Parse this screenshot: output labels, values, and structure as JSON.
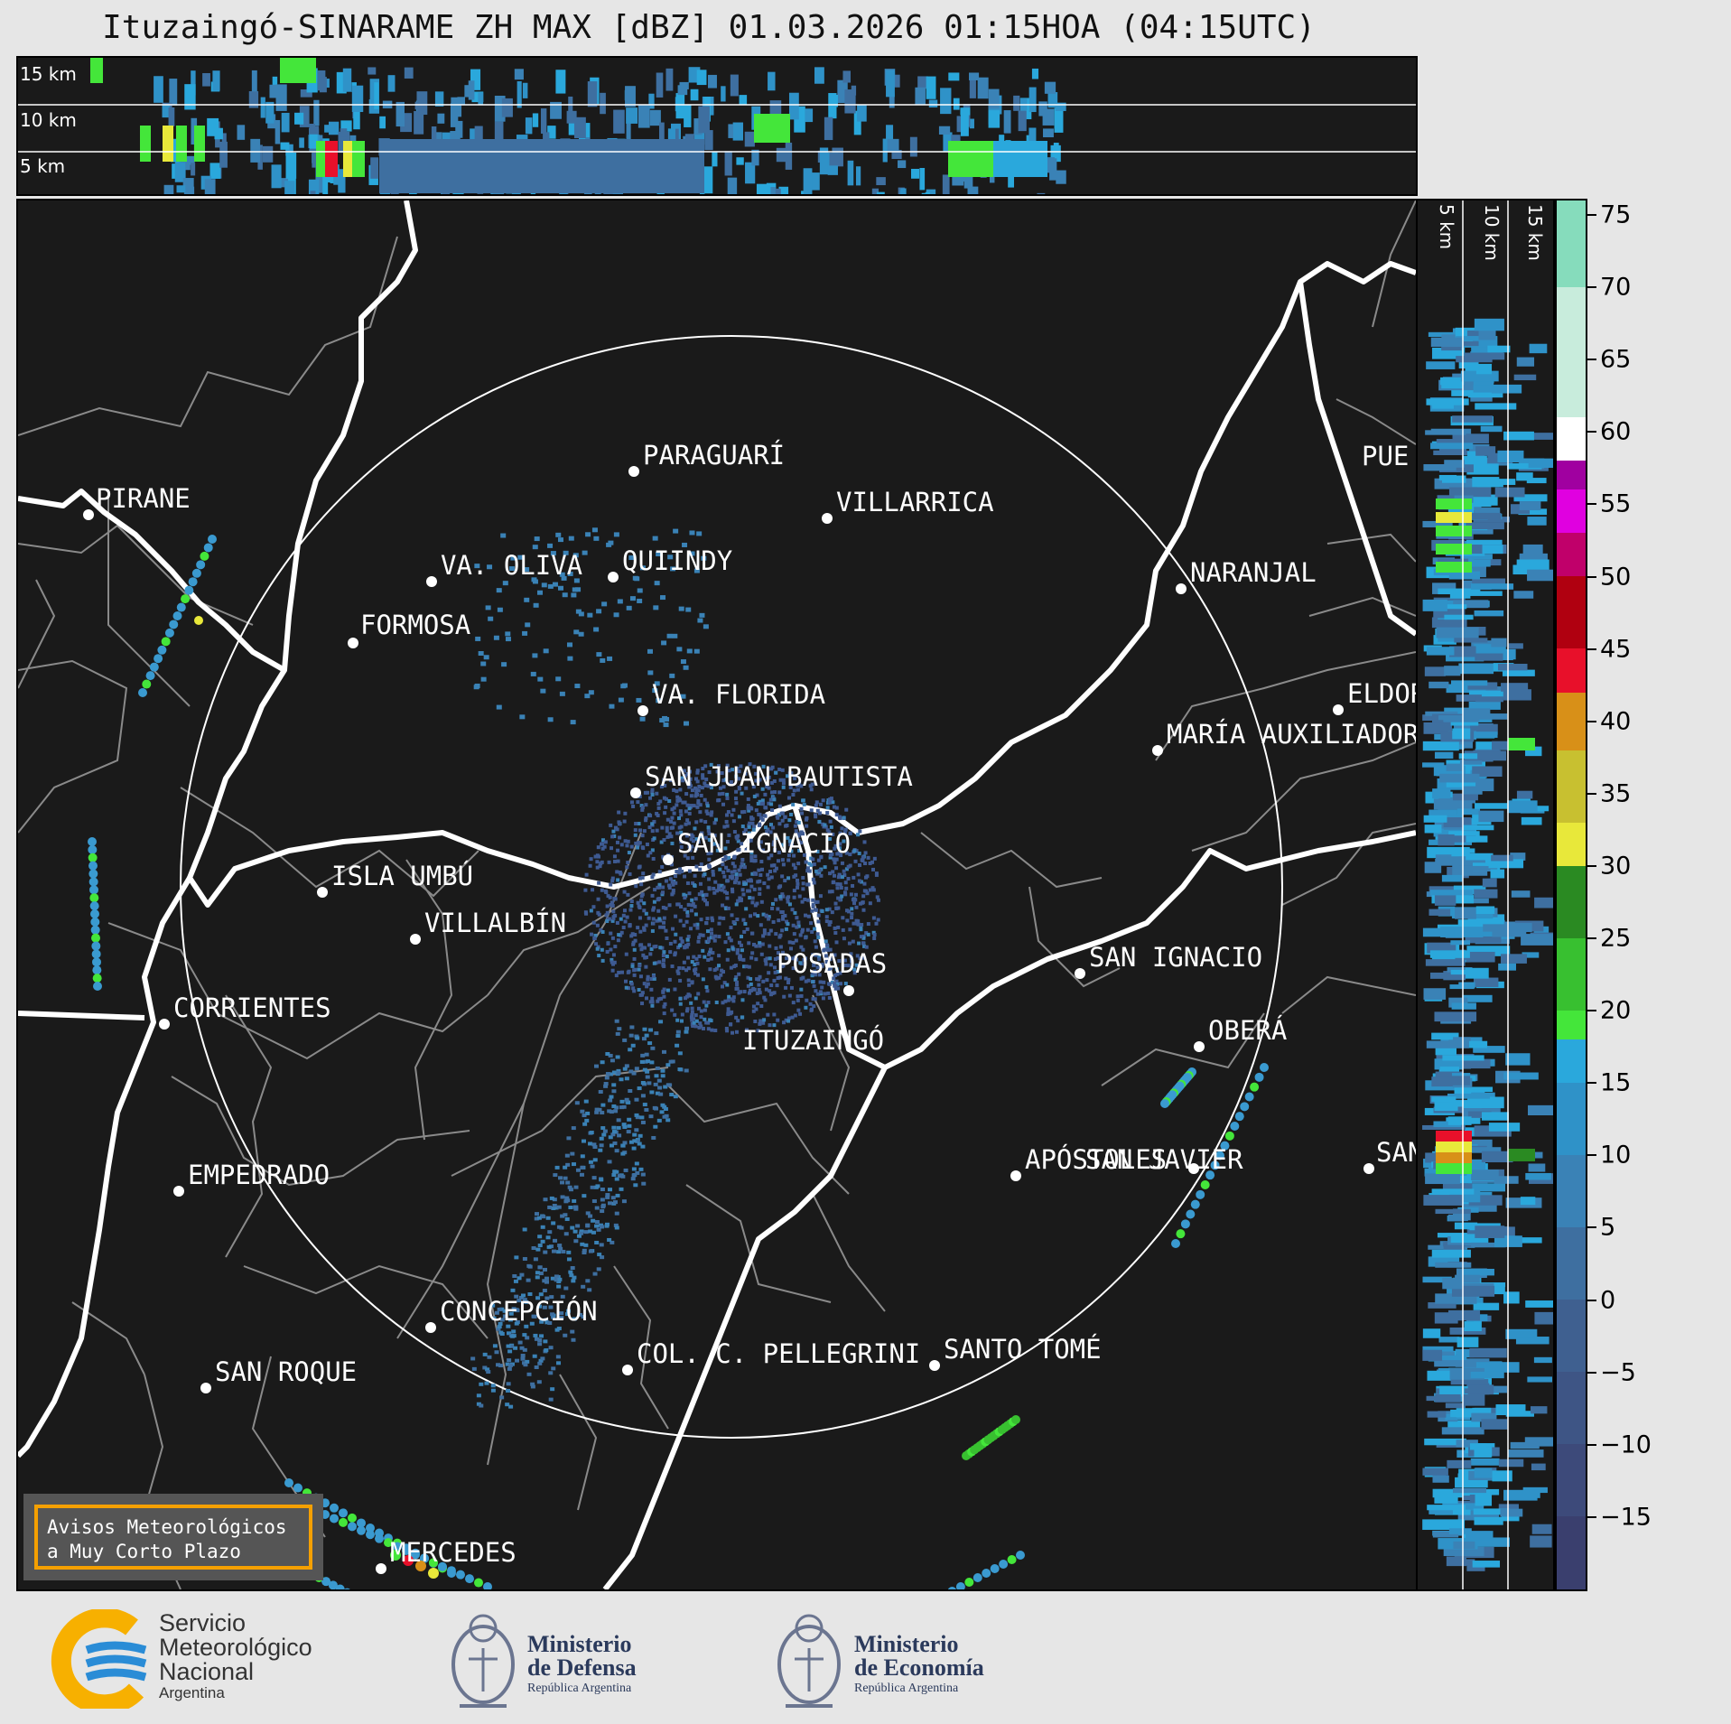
{
  "title": "Ituzaingó-SINARAME ZH MAX [dBZ] 01.03.2026 01:15HOA (04:15UTC)",
  "top_panel": {
    "height_labels": [
      "15 km",
      "10 km",
      "5 km"
    ]
  },
  "right_panel": {
    "height_labels": [
      "5 km",
      "10 km",
      "15 km"
    ]
  },
  "colorbar": {
    "ticks": [
      "75",
      "70",
      "65",
      "60",
      "55",
      "50",
      "45",
      "40",
      "35",
      "30",
      "25",
      "20",
      "15",
      "10",
      "5",
      "0",
      "−5",
      "−10",
      "−15"
    ],
    "range": [
      -20,
      76
    ]
  },
  "cities": [
    {
      "name": "PIRANE"
    },
    {
      "name": "PARAGUARÍ"
    },
    {
      "name": "VILLARRICA"
    },
    {
      "name": "QUIINDY"
    },
    {
      "name": "VA. OLIVA"
    },
    {
      "name": "NARANJAL"
    },
    {
      "name": "FORMOSA"
    },
    {
      "name": "VA. FLORIDA"
    },
    {
      "name": "ELDOR"
    },
    {
      "name": "MARÍA AUXILIADOR"
    },
    {
      "name": "SAN JUAN BAUTISTA"
    },
    {
      "name": "SAN IGNACIO"
    },
    {
      "name": "ISLA UMBÚ"
    },
    {
      "name": "VILLALBÍN"
    },
    {
      "name": "SAN IGNACIO"
    },
    {
      "name": "POSADAS"
    },
    {
      "name": "CORRIENTES"
    },
    {
      "name": "OBERÁ"
    },
    {
      "name": "ITUZAINGÓ"
    },
    {
      "name": "EMPEDRADO"
    },
    {
      "name": "APÓSTOLES"
    },
    {
      "name": "SAN JAVIER"
    },
    {
      "name": "SAN"
    },
    {
      "name": "CONCEPCIÓN"
    },
    {
      "name": "COL. C. PELLEGRINI"
    },
    {
      "name": "SANTO TOMÉ"
    },
    {
      "name": "SAN ROQUE"
    },
    {
      "name": "MERCEDES"
    },
    {
      "name": "PUE"
    }
  ],
  "warning": {
    "line1": "Avisos Meteorológicos",
    "line2": "a Muy Corto Plazo"
  },
  "logos": {
    "smn": {
      "line1": "Servicio",
      "line2": "Meteorológico",
      "line3": "Nacional",
      "line4": "Argentina"
    },
    "defensa": {
      "line1": "Ministerio",
      "line2": "de Defensa",
      "line3": "República Argentina"
    },
    "economia": {
      "line1": "Ministerio",
      "line2": "de Economía",
      "line3": "República Argentina"
    }
  },
  "colors": {
    "smn_yellow": "#f7b000",
    "smn_blue": "#2a8cd6",
    "warning_border": "#f5a000"
  }
}
